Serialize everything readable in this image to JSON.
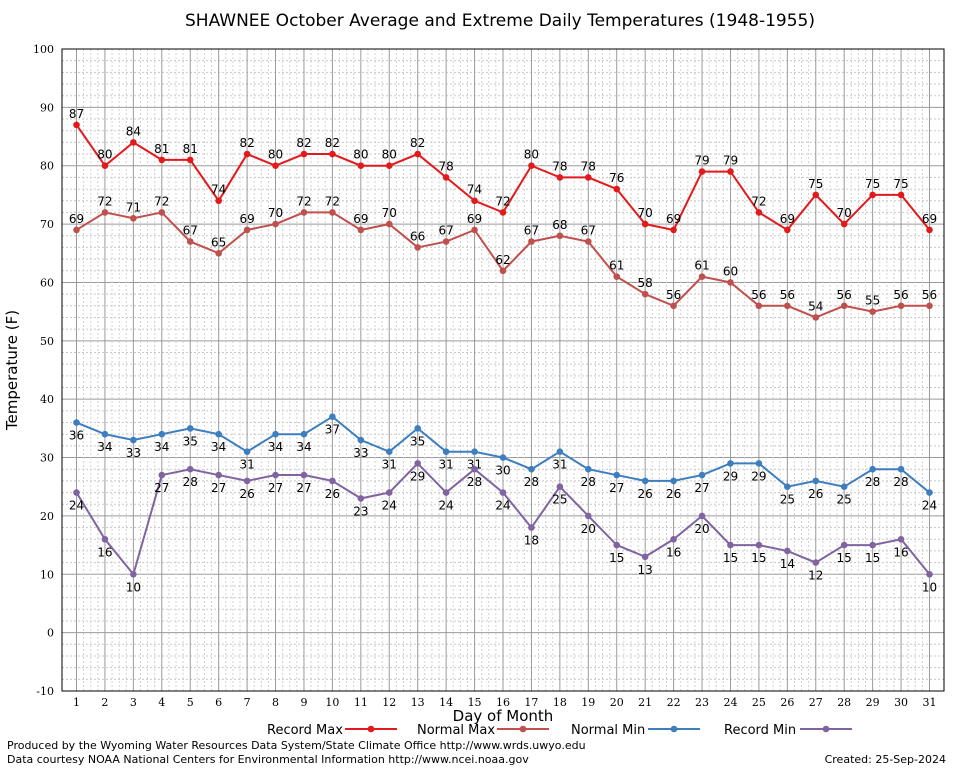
{
  "chart_data": {
    "type": "line",
    "title": "SHAWNEE October Average and Extreme Daily Temperatures (1948-1955)",
    "xlabel": "Day of Month",
    "ylabel": "Temperature (F)",
    "ylim": [
      -10,
      100
    ],
    "xlim": [
      1,
      31
    ],
    "grid": true,
    "legend_position": "bottom",
    "x": [
      1,
      2,
      3,
      4,
      5,
      6,
      7,
      8,
      9,
      10,
      11,
      12,
      13,
      14,
      15,
      16,
      17,
      18,
      19,
      20,
      21,
      22,
      23,
      24,
      25,
      26,
      27,
      28,
      29,
      30,
      31
    ],
    "y_ticks": [
      -10,
      0,
      10,
      20,
      30,
      40,
      50,
      60,
      70,
      80,
      90,
      100
    ],
    "series": [
      {
        "name": "Record Max",
        "color": "#e31a1c",
        "values": [
          87,
          80,
          84,
          81,
          81,
          74,
          82,
          80,
          82,
          82,
          80,
          80,
          82,
          78,
          74,
          72,
          80,
          78,
          78,
          76,
          70,
          69,
          79,
          79,
          72,
          69,
          75,
          70,
          75,
          75,
          69
        ]
      },
      {
        "name": "Normal Max",
        "color": "#c0504d",
        "values": [
          69,
          72,
          71,
          72,
          67,
          65,
          69,
          70,
          72,
          72,
          69,
          70,
          66,
          67,
          69,
          62,
          67,
          68,
          67,
          61,
          58,
          56,
          61,
          60,
          56,
          56,
          54,
          56,
          55,
          56,
          56
        ]
      },
      {
        "name": "Normal Min",
        "color": "#3d7ebf",
        "values": [
          36,
          34,
          33,
          34,
          35,
          34,
          31,
          34,
          34,
          37,
          33,
          31,
          35,
          31,
          31,
          30,
          28,
          31,
          28,
          27,
          26,
          26,
          27,
          29,
          29,
          25,
          26,
          25,
          28,
          28,
          24
        ]
      },
      {
        "name": "Record Min",
        "color": "#8064a2",
        "values": [
          24,
          16,
          10,
          27,
          28,
          27,
          26,
          27,
          27,
          26,
          23,
          24,
          29,
          24,
          28,
          24,
          18,
          25,
          20,
          15,
          13,
          16,
          20,
          15,
          15,
          14,
          12,
          15,
          15,
          16,
          10
        ]
      }
    ]
  },
  "footer": {
    "produced_by": "Produced by the Wyoming Water Resources Data System/State Climate Office http://www.wrds.uwyo.edu",
    "data_courtesy": "Data courtesy NOAA National Centers for Environmental Information http://www.ncei.noaa.gov",
    "created": "Created: 25-Sep-2024"
  }
}
